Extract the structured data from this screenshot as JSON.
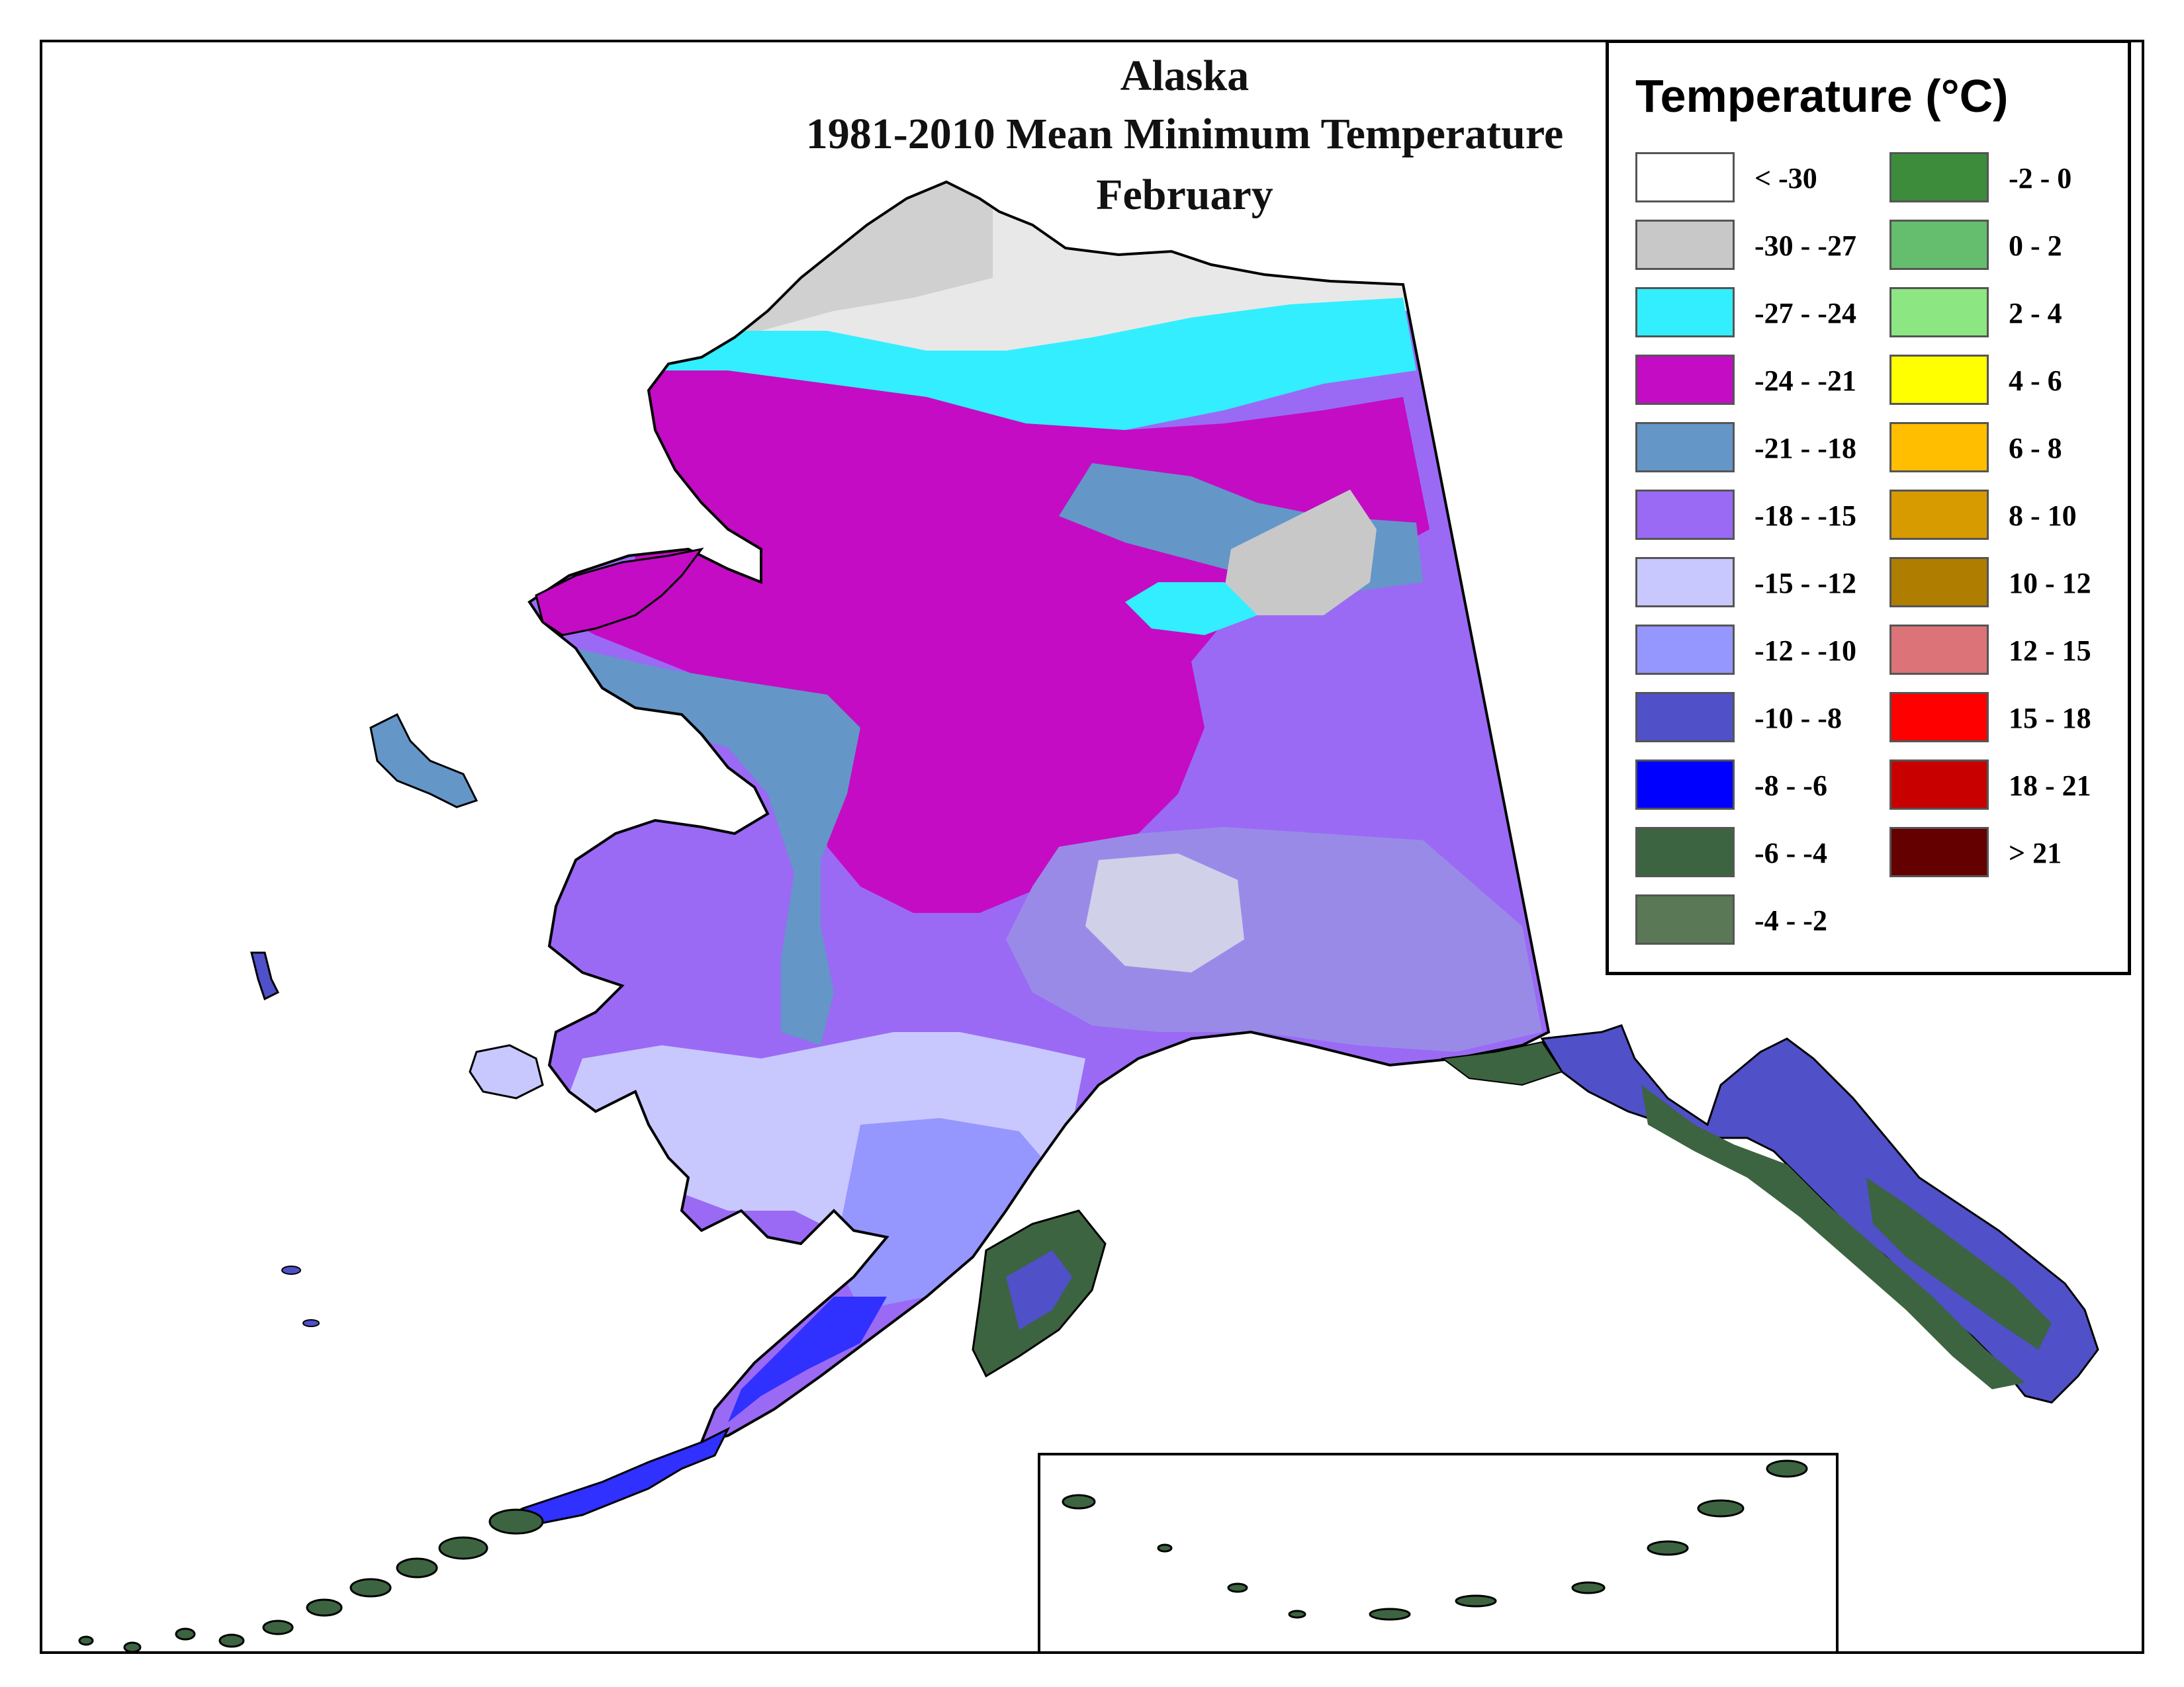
{
  "title": {
    "line1": "Alaska",
    "line2": "1981-2010 Mean Minimum Temperature",
    "line3": "February"
  },
  "legend": {
    "title": "Temperature (°C)",
    "items": [
      {
        "label": "< -30",
        "color": "#ffffff"
      },
      {
        "label": "-30 - -27",
        "color": "#c8c8c8"
      },
      {
        "label": "-27 - -24",
        "color": "#33eeff"
      },
      {
        "label": "-24 - -21",
        "color": "#c40cc4"
      },
      {
        "label": "-21 - -18",
        "color": "#6496c8"
      },
      {
        "label": "-18 - -15",
        "color": "#9a6af5"
      },
      {
        "label": "-15 - -12",
        "color": "#c8c8ff"
      },
      {
        "label": "-12 - -10",
        "color": "#9696ff"
      },
      {
        "label": "-10 - -8",
        "color": "#5050c8"
      },
      {
        "label": "-8 - -6",
        "color": "#0000ff"
      },
      {
        "label": "-6 - -4",
        "color": "#3c6440"
      },
      {
        "label": "-4 - -2",
        "color": "#5a7855"
      },
      {
        "label": "-2 - 0",
        "color": "#3c8c3c"
      },
      {
        "label": "0 - 2",
        "color": "#64be6e"
      },
      {
        "label": "2 - 4",
        "color": "#8ce682"
      },
      {
        "label": "4 - 6",
        "color": "#ffff00"
      },
      {
        "label": "6 - 8",
        "color": "#ffbe00"
      },
      {
        "label": "8 - 10",
        "color": "#d79b00"
      },
      {
        "label": "10 - 12",
        "color": "#af7d00"
      },
      {
        "label": "12 - 15",
        "color": "#dc7378"
      },
      {
        "label": "15 - 18",
        "color": "#ff0000"
      },
      {
        "label": "18 - 21",
        "color": "#c80000"
      },
      {
        "label": "> 21",
        "color": "#640000"
      }
    ]
  }
}
